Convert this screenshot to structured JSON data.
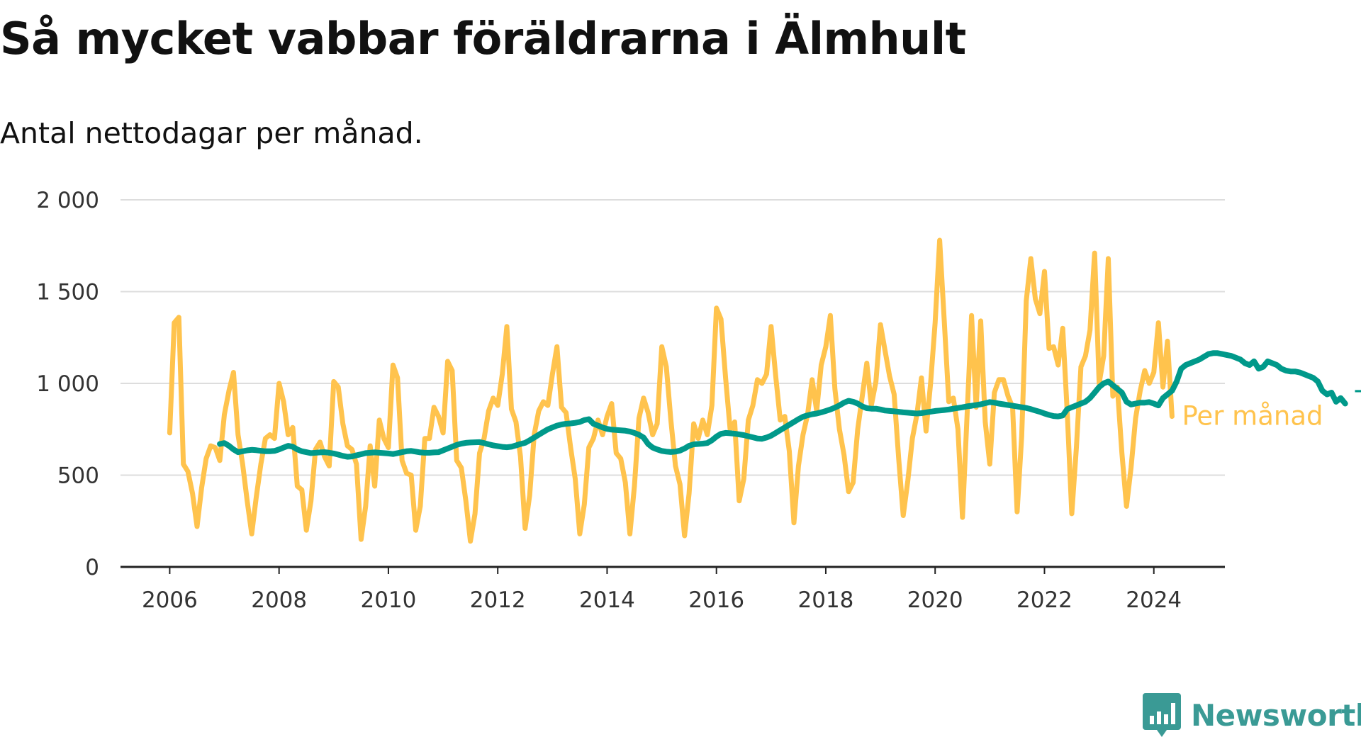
{
  "title": "Så mycket vabbar föräldrarna i Älmhult",
  "subtitle": "Antal nettodagar per månad.",
  "brand": {
    "name": "Newsworthy",
    "icon": "newsworthy-logo-icon",
    "color": "#3a9a95"
  },
  "colors": {
    "monthly": "#ffc34d",
    "trend": "#00998a",
    "grid": "#dddddd",
    "axis": "#222222"
  },
  "chart_data": {
    "type": "line",
    "title": "Så mycket vabbar föräldrarna i Älmhult",
    "subtitle": "Antal nettodagar per månad.",
    "xlabel": "",
    "ylabel": "",
    "xlim": [
      2005.1,
      2025.3
    ],
    "ylim": [
      0,
      2000
    ],
    "x_ticks": [
      2006,
      2008,
      2010,
      2012,
      2014,
      2016,
      2018,
      2020,
      2022,
      2024
    ],
    "y_ticks": [
      0,
      500,
      1000,
      1500,
      2000
    ],
    "y_tick_labels": [
      "0",
      "500",
      "1 000",
      "1 500",
      "2 000"
    ],
    "grid": "horizontal",
    "legend": "end-of-line labels",
    "x_start": "2006-01",
    "x_step": "month",
    "series": [
      {
        "name": "Per månad",
        "color": "#ffc34d",
        "values": [
          730,
          1330,
          1360,
          560,
          520,
          400,
          220,
          430,
          590,
          660,
          650,
          580,
          830,
          960,
          1060,
          720,
          560,
          360,
          180,
          380,
          560,
          700,
          720,
          700,
          1000,
          900,
          720,
          760,
          440,
          420,
          200,
          360,
          640,
          680,
          600,
          550,
          1010,
          980,
          780,
          660,
          640,
          560,
          150,
          330,
          660,
          440,
          800,
          700,
          650,
          1100,
          1030,
          580,
          510,
          500,
          200,
          330,
          700,
          700,
          870,
          820,
          730,
          1120,
          1070,
          580,
          540,
          360,
          140,
          290,
          620,
          700,
          850,
          920,
          880,
          1050,
          1310,
          860,
          790,
          600,
          210,
          390,
          720,
          850,
          900,
          880,
          1050,
          1200,
          870,
          840,
          650,
          480,
          180,
          340,
          650,
          700,
          800,
          720,
          820,
          890,
          620,
          590,
          460,
          180,
          440,
          810,
          920,
          840,
          720,
          780,
          1200,
          1090,
          800,
          550,
          450,
          170,
          400,
          780,
          700,
          800,
          720,
          880,
          1410,
          1350,
          1030,
          750,
          790,
          360,
          480,
          800,
          880,
          1020,
          1000,
          1050,
          1310,
          1040,
          800,
          820,
          630,
          240,
          550,
          720,
          830,
          1020,
          850,
          1100,
          1200,
          1370,
          970,
          750,
          610,
          410,
          460,
          750,
          930,
          1110,
          880,
          1010,
          1320,
          1180,
          1040,
          940,
          590,
          280,
          470,
          700,
          830,
          1030,
          740,
          1000,
          1330,
          1780,
          1340,
          900,
          920,
          750,
          270,
          820,
          1370,
          870,
          1340,
          790,
          560,
          950,
          1020,
          1020,
          930,
          870,
          300,
          710,
          1450,
          1680,
          1460,
          1380,
          1610,
          1190,
          1200,
          1100,
          1300,
          840,
          290,
          650,
          1090,
          1150,
          1290,
          1710,
          1000,
          1150,
          1680,
          930,
          980,
          620,
          330,
          540,
          810,
          960,
          1070,
          1000,
          1060,
          1330,
          980,
          1230,
          820
        ]
      },
      {
        "name": "Trend",
        "color": "#00998a",
        "start": "2006-12",
        "values": [
          670,
          675,
          660,
          640,
          625,
          630,
          635,
          638,
          636,
          633,
          630,
          630,
          632,
          640,
          650,
          660,
          655,
          640,
          630,
          625,
          620,
          622,
          624,
          625,
          622,
          618,
          612,
          605,
          600,
          602,
          608,
          614,
          620,
          622,
          624,
          622,
          620,
          618,
          615,
          620,
          625,
          630,
          632,
          628,
          624,
          622,
          622,
          624,
          625,
          635,
          645,
          655,
          665,
          672,
          676,
          678,
          679,
          680,
          675,
          668,
          662,
          658,
          654,
          652,
          655,
          662,
          670,
          676,
          690,
          705,
          720,
          735,
          750,
          760,
          770,
          776,
          780,
          782,
          785,
          790,
          800,
          805,
          780,
          770,
          760,
          752,
          748,
          746,
          744,
          742,
          738,
          730,
          720,
          705,
          670,
          650,
          640,
          632,
          628,
          626,
          628,
          634,
          645,
          660,
          668,
          670,
          672,
          675,
          690,
          710,
          725,
          730,
          728,
          726,
          722,
          718,
          712,
          706,
          700,
          698,
          705,
          715,
          730,
          745,
          760,
          775,
          790,
          805,
          818,
          826,
          832,
          836,
          842,
          850,
          858,
          868,
          880,
          895,
          905,
          900,
          890,
          875,
          865,
          862,
          862,
          858,
          852,
          850,
          848,
          845,
          842,
          840,
          838,
          836,
          838,
          842,
          846,
          850,
          852,
          855,
          858,
          862,
          866,
          870,
          875,
          878,
          882,
          886,
          892,
          898,
          895,
          890,
          886,
          882,
          878,
          874,
          870,
          866,
          860,
          852,
          845,
          836,
          828,
          822,
          820,
          825,
          860,
          870,
          880,
          890,
          900,
          920,
          950,
          980,
          1000,
          1010,
          990,
          970,
          950,
          900,
          885,
          890,
          895,
          895,
          898,
          890,
          880,
          920,
          940,
          960,
          1010,
          1080,
          1100,
          1110,
          1120,
          1130,
          1145,
          1160,
          1165,
          1165,
          1160,
          1155,
          1150,
          1140,
          1130,
          1110,
          1100,
          1120,
          1080,
          1090,
          1120,
          1110,
          1100,
          1080,
          1070,
          1065,
          1065,
          1060,
          1050,
          1040,
          1030,
          1010,
          960,
          940,
          950,
          900,
          920,
          890
        ]
      }
    ]
  }
}
